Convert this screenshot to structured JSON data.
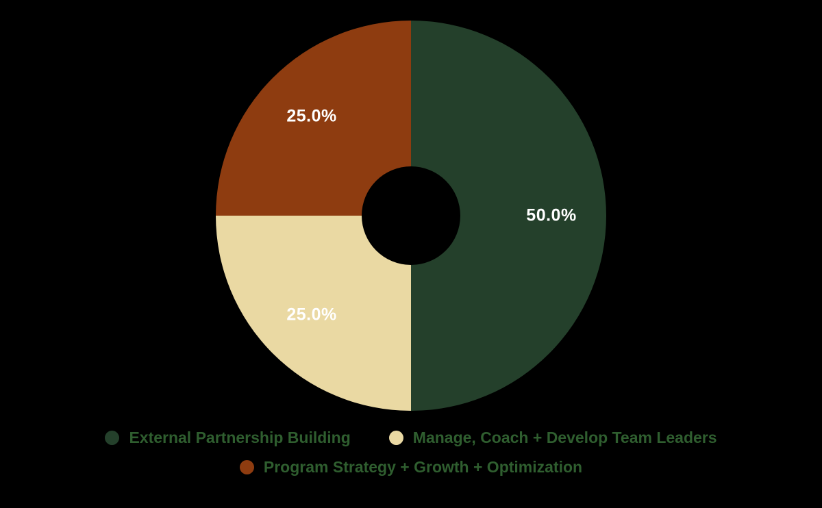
{
  "chart_data": {
    "type": "pie",
    "subtype": "donut",
    "categories": [
      "External Partnership Building",
      "Manage, Coach + Develop Team Leaders",
      "Program Strategy + Growth + Optimization"
    ],
    "values": [
      50.0,
      25.0,
      25.0
    ],
    "slice_labels": [
      "50.0%",
      "25.0%",
      "25.0%"
    ],
    "colors": [
      "#24402b",
      "#ead9a3",
      "#8e3c10"
    ],
    "label_color": "#ffffff",
    "legend_text_color": "#2f5e2f",
    "background_color": "#000000",
    "start_angle_deg": 0,
    "direction": "clockwise",
    "legend_position": "bottom",
    "title": ""
  }
}
